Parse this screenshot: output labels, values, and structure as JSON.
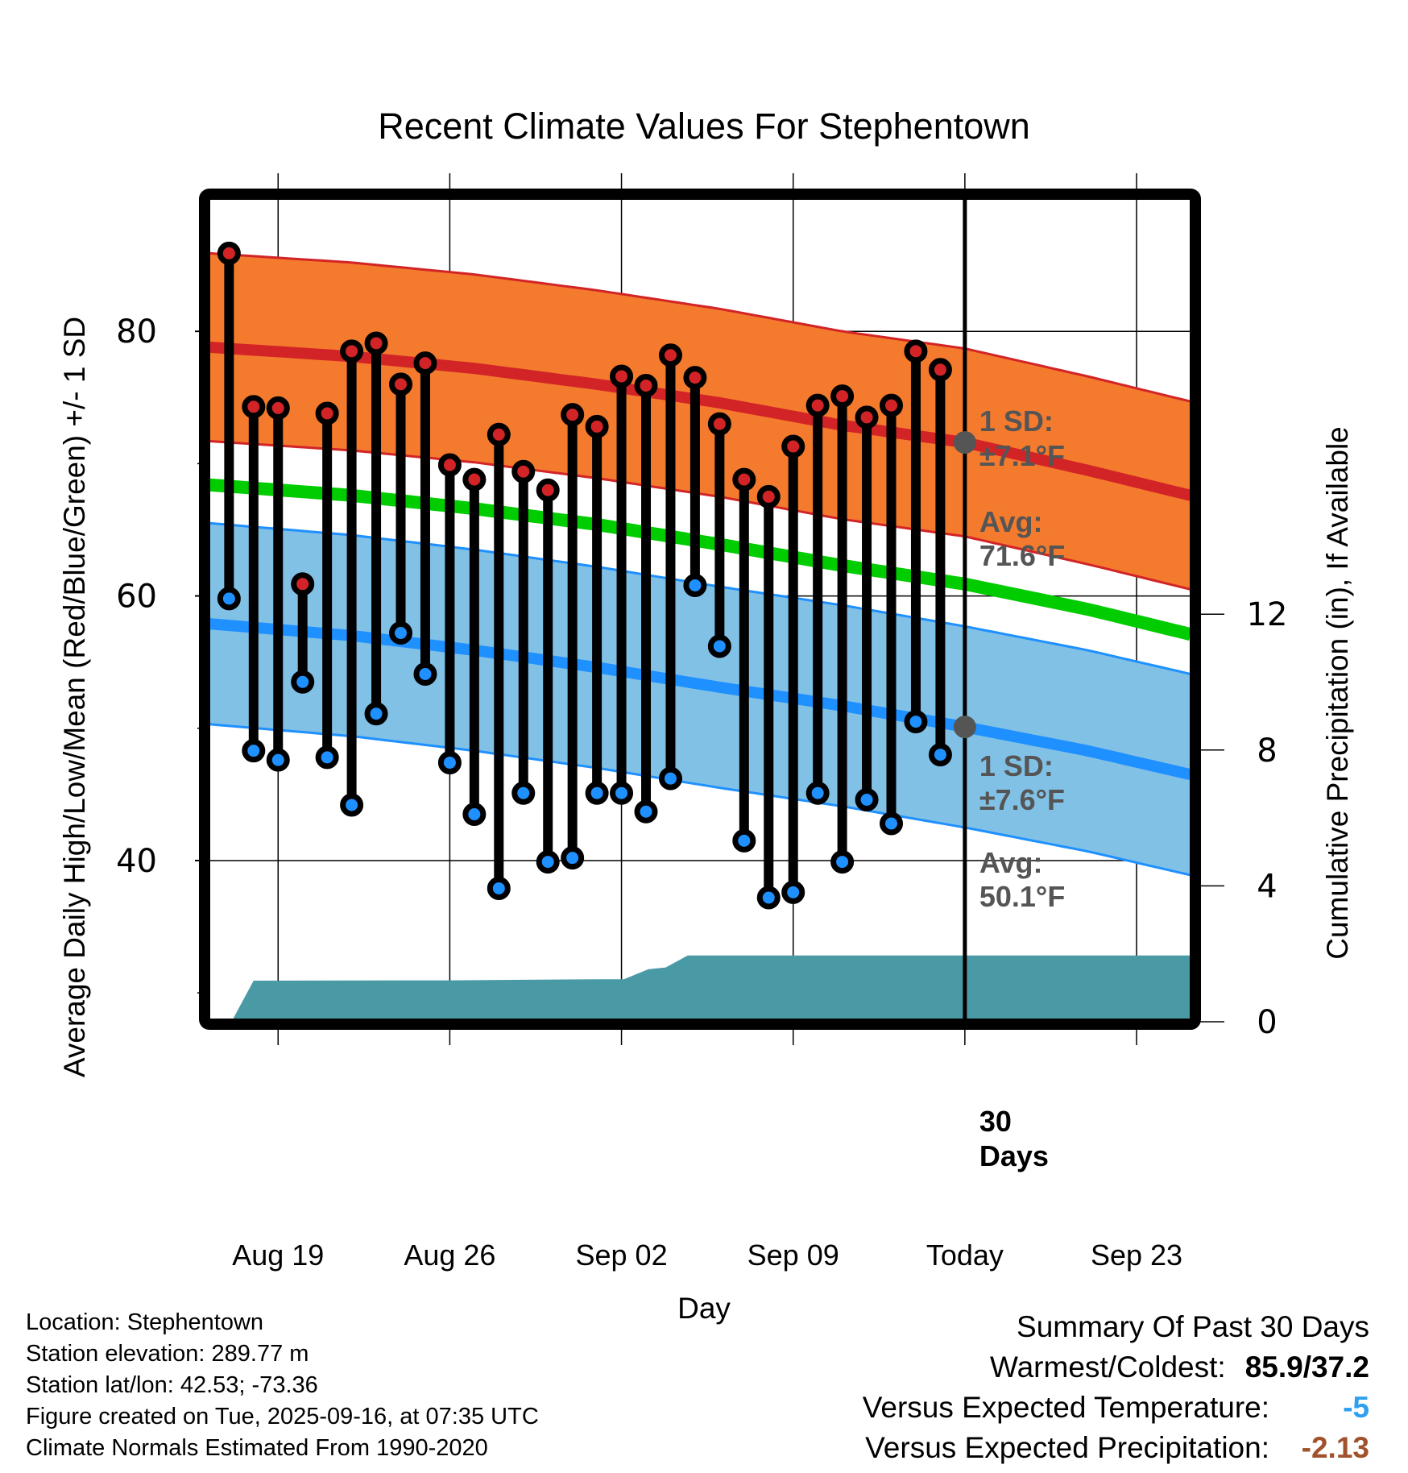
{
  "chart_data": {
    "type": "line",
    "title": "Recent Climate Values For Stephentown",
    "xlabel": "Day",
    "ylabel": "Average Daily High/Low/Mean (Red/Blue/Green) +/- 1 SD",
    "ylabel_right": "Cumulative Precipitation (in), If Available",
    "ylim": [
      28,
      90
    ],
    "ylim_right": [
      0,
      29.3
    ],
    "yticks": [
      40,
      60,
      80
    ],
    "yticks_right": [
      0,
      4,
      8,
      12
    ],
    "x_start": "Aug 17",
    "x_range_days": [
      -0.8,
      39.2
    ],
    "xtick_days": [
      2,
      9,
      16,
      23,
      30,
      37
    ],
    "xtick_labels": [
      "Aug 19",
      "Aug 26",
      "Sep 02",
      "Sep 09",
      "Today",
      "Sep 23"
    ],
    "today_day": 30,
    "grid": true,
    "dates": [
      "Aug 17",
      "Aug 18",
      "Aug 19",
      "Aug 20",
      "Aug 21",
      "Aug 22",
      "Aug 23",
      "Aug 24",
      "Aug 25",
      "Aug 26",
      "Aug 27",
      "Aug 28",
      "Aug 29",
      "Aug 30",
      "Aug 31",
      "Sep 01",
      "Sep 02",
      "Sep 03",
      "Sep 04",
      "Sep 05",
      "Sep 06",
      "Sep 07",
      "Sep 08",
      "Sep 09",
      "Sep 10",
      "Sep 11",
      "Sep 12",
      "Sep 13",
      "Sep 14",
      "Sep 15"
    ],
    "series": [
      {
        "name": "Daily High",
        "color": "#d22427",
        "values": [
          85.9,
          74.3,
          74.2,
          60.9,
          73.8,
          78.5,
          79.1,
          76.0,
          77.6,
          69.9,
          68.8,
          72.2,
          69.4,
          68.0,
          73.7,
          72.8,
          76.6,
          75.9,
          78.2,
          76.5,
          73.0,
          68.8,
          67.5,
          71.3,
          74.4,
          75.1,
          73.5,
          74.4,
          78.5,
          77.1
        ]
      },
      {
        "name": "Daily Low",
        "color": "#1e90ff",
        "values": [
          59.8,
          48.3,
          47.6,
          53.5,
          47.8,
          44.2,
          51.1,
          57.2,
          54.1,
          47.4,
          43.5,
          37.9,
          45.1,
          39.9,
          40.2,
          45.1,
          45.1,
          43.7,
          46.2,
          60.8,
          56.2,
          41.5,
          37.2,
          37.6,
          45.1,
          39.9,
          44.6,
          42.8,
          50.5,
          48.0
        ]
      }
    ],
    "normals": {
      "days": [
        -0.8,
        5,
        10,
        15,
        20,
        25,
        30,
        35,
        39.2
      ],
      "avg_high": [
        78.8,
        78.1,
        77.2,
        76.0,
        74.6,
        72.9,
        71.6,
        69.5,
        67.6
      ],
      "avg_high_sd": 7.1,
      "avg_low": [
        57.9,
        57.0,
        55.9,
        54.6,
        53.1,
        51.7,
        50.1,
        48.3,
        46.5
      ],
      "avg_low_sd": 7.6,
      "avg_mean": [
        68.4,
        67.6,
        66.6,
        65.4,
        63.9,
        62.3,
        60.9,
        59.0,
        57.1
      ]
    },
    "precip": {
      "name": "Cumulative Precipitation",
      "color": "#4a9aa5",
      "days": [
        -0.8,
        0.1,
        1.0,
        9.0,
        15.0,
        16.1,
        17.1,
        17.8,
        18.7,
        19.5,
        39.2
      ],
      "values": [
        0,
        0,
        1.21,
        1.22,
        1.25,
        1.25,
        1.55,
        1.6,
        1.95,
        1.95,
        1.95
      ]
    },
    "annotations": [
      {
        "name": "high-sd",
        "lines": [
          "1 SD:",
          "±7.1°F"
        ]
      },
      {
        "name": "high-avg",
        "lines": [
          "Avg:",
          "71.6°F"
        ]
      },
      {
        "name": "low-sd",
        "lines": [
          "1 SD:",
          "±7.6°F"
        ]
      },
      {
        "name": "low-avg",
        "lines": [
          "Avg:",
          "50.1°F"
        ]
      },
      {
        "name": "precip-window",
        "lines": [
          "30",
          "Days"
        ]
      }
    ],
    "colors": {
      "high_band": "#f47a2d",
      "high_line": "#d22427",
      "low_band": "#82c1e6",
      "low_line": "#1e90ff",
      "mean_line": "#00cc00",
      "precip_fill": "#4a9aa5",
      "annotation_text": "#555555",
      "today_marker": "#555555"
    }
  },
  "footer": {
    "location": "Location: Stephentown",
    "elevation": "Station elevation: 289.77 m",
    "latlon": "Station lat/lon: 42.53; -73.36",
    "created": "Figure created on Tue, 2025-09-16, at 07:35 UTC",
    "normals": "Climate Normals Estimated From 1990-2020"
  },
  "summary": {
    "heading": "Summary Of Past 30 Days",
    "warmest_coldest_label": "Warmest/Coldest:",
    "warmest_coldest_value": "85.9/37.2",
    "temp_label": "Versus Expected Temperature:",
    "temp_value": "-5",
    "temp_color": "#2f9ff0",
    "precip_label": "Versus Expected Precipitation:",
    "precip_value": "-2.13",
    "precip_color": "#a0522d"
  }
}
